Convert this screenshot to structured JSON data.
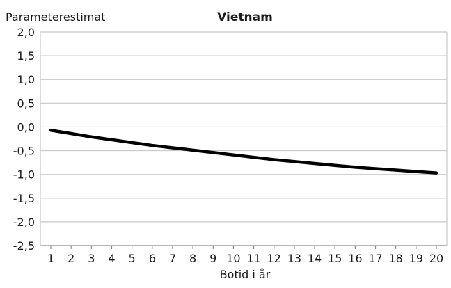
{
  "chart_data": {
    "type": "line",
    "title": "Vietnam",
    "ylabel": "Parameterestimat",
    "xlabel": "Botid i år",
    "x": [
      1,
      2,
      3,
      4,
      5,
      6,
      7,
      8,
      9,
      10,
      11,
      12,
      13,
      14,
      15,
      16,
      17,
      18,
      19,
      20
    ],
    "y_ticks": [
      "2,0",
      "1,5",
      "1,0",
      "0,5",
      "0,0",
      "-0,5",
      "-1,0",
      "-1,5",
      "-2,0",
      "-2,5"
    ],
    "y_tick_values": [
      2.0,
      1.5,
      1.0,
      0.5,
      0.0,
      -0.5,
      -1.0,
      -1.5,
      -2.0,
      -2.5
    ],
    "ylim": [
      -2.5,
      2.0
    ],
    "grid": true,
    "legend": "none",
    "series": [
      {
        "values": [
          -0.07,
          -0.14,
          -0.21,
          -0.27,
          -0.33,
          -0.39,
          -0.44,
          -0.49,
          -0.54,
          -0.59,
          -0.64,
          -0.69,
          -0.73,
          -0.77,
          -0.81,
          -0.85,
          -0.88,
          -0.91,
          -0.94,
          -0.97
        ],
        "color": "#000000"
      }
    ]
  }
}
